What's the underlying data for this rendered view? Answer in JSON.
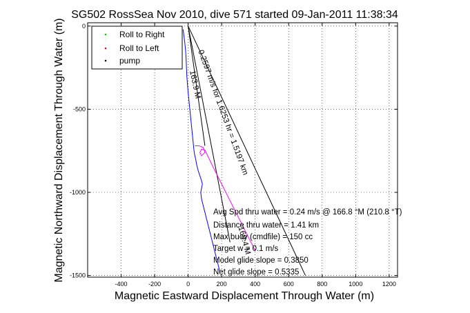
{
  "chart_data": {
    "type": "line",
    "title": "SG502 RossSea Nov 2010, dive 571 started 09-Jan-2011 11:38:34",
    "xlabel": "Magnetic Eastward Displacement Through Water (m)",
    "ylabel": "Magnetic Northward Displacement Through Water (m)",
    "xlim": [
      -600,
      1250
    ],
    "ylim": [
      -1510,
      20
    ],
    "grid": true,
    "xticks": [
      -400,
      -200,
      0,
      200,
      400,
      600,
      800,
      1000,
      1200
    ],
    "yticks": [
      0,
      -500,
      -1000,
      -1500
    ],
    "legend": {
      "position": "top-left",
      "entries": [
        {
          "label": "Roll to Right",
          "color": "#00cc00",
          "marker": "dot"
        },
        {
          "label": "Roll to Left",
          "color": "#ff0000",
          "marker": "dot"
        },
        {
          "label": "pump",
          "color": "#000000",
          "marker": "dot"
        }
      ]
    },
    "series": [
      {
        "color": "#0000ff",
        "x": [
          -30,
          -25,
          -20,
          -15,
          -12,
          -10,
          -8,
          0,
          5,
          10,
          15,
          20,
          25,
          30,
          35,
          40,
          45,
          50,
          60,
          70,
          80,
          85,
          80,
          75,
          80,
          90,
          100,
          110,
          120,
          130,
          140,
          150,
          160,
          170,
          180,
          190
        ],
        "y": [
          -20,
          -60,
          -100,
          -150,
          -200,
          -250,
          -300,
          -400,
          -450,
          -500,
          -550,
          -600,
          -650,
          -700,
          -750,
          -780,
          -800,
          -830,
          -870,
          -900,
          -930,
          -950,
          -975,
          -1000,
          -1040,
          -1080,
          -1120,
          -1160,
          -1200,
          -1240,
          -1280,
          -1320,
          -1360,
          -1400,
          -1440,
          -1480
        ]
      },
      {
        "color": "#ff00ff",
        "x": [
          40,
          65,
          90,
          100,
          80,
          70,
          80,
          100,
          150,
          200,
          250,
          300,
          350,
          400
        ],
        "y": [
          -720,
          -720,
          -730,
          -760,
          -780,
          -760,
          -740,
          -745,
          -850,
          -950,
          -1050,
          -1150,
          -1250,
          -1350
        ]
      }
    ],
    "lines": [
      {
        "color": "#000000",
        "x": [
          0,
          250
        ],
        "y": [
          0,
          -1300
        ]
      },
      {
        "color": "#000000",
        "x": [
          0,
          700
        ],
        "y": [
          0,
          -1500
        ]
      },
      {
        "color": "#000000",
        "x": [
          0,
          100
        ],
        "y": [
          0,
          -720
        ]
      }
    ],
    "text_annotations": [
      {
        "text": "0.2597 m/s for 1.6253 hr = 1.5197 km",
        "x": 60,
        "y": -150,
        "rotation": 70
      },
      {
        "text": "163.9 M",
        "x": 10,
        "y": -270,
        "rotation": 78
      },
      {
        "text": "169.4 M",
        "x": 300,
        "y": -1210,
        "rotation": 75
      }
    ],
    "info_text": [
      "Avg Spd thru water =  0.24 m/s @ 166.8    °M (210.8 °T)",
      "Distance thru water =  1.41 km",
      "Max buoy (cmdfile) = 150 cc",
      "Target w = 0.1 m/s",
      "Model glide slope = 0.3850",
      "Net glide slope = 0.5335"
    ]
  }
}
